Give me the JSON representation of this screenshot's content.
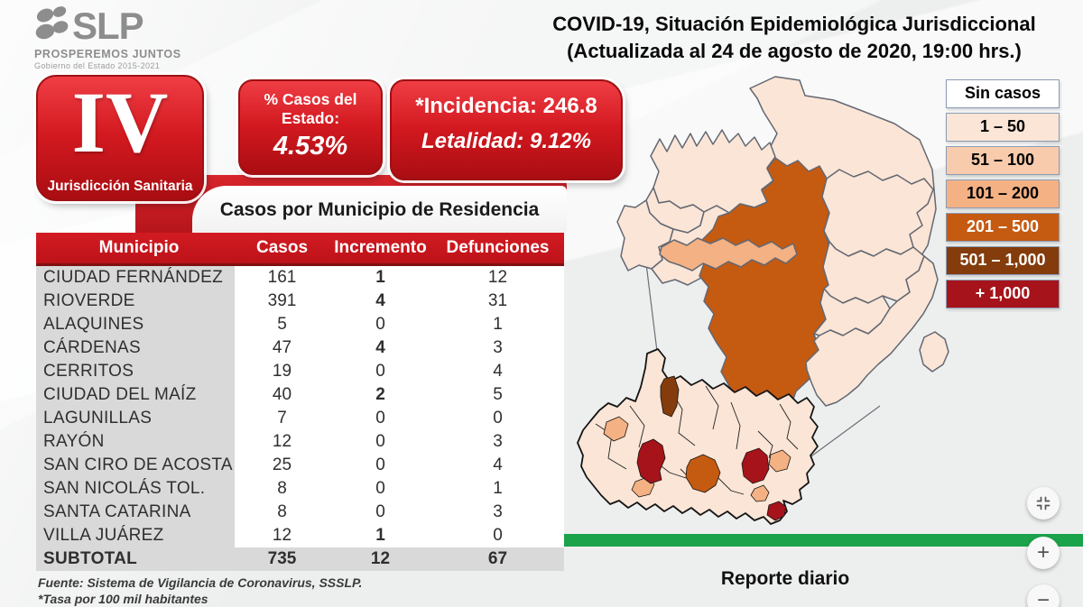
{
  "brand": {
    "name": "SLP",
    "tagline": "PROSPEREMOS JUNTOS",
    "government": "Gobierno del Estado 2015-2021"
  },
  "header": {
    "title_line1": "COVID-19, Situación Epidemiológica Jurisdiccional",
    "title_line2": "(Actualizada al 24 de agosto de 2020, 19:00 hrs.)"
  },
  "jurisdiction": {
    "numeral": "IV",
    "label": "Jurisdicción Sanitaria"
  },
  "stats": {
    "state_share": {
      "label": "% Casos del Estado:",
      "value": "4.53%"
    },
    "incidence": {
      "label": "*Incidencia:",
      "value": "246.8"
    },
    "lethality": {
      "label": "Letalidad:",
      "value": "9.12%"
    }
  },
  "table": {
    "title": "Casos por Municipio  de Residencia",
    "columns": [
      "Municipio",
      "Casos",
      "Incremento",
      "Defunciones"
    ],
    "rows": [
      {
        "municipio": "CIUDAD FERNÁNDEZ",
        "casos": "161",
        "incremento": "1",
        "defunciones": "12",
        "incremento_bold": true
      },
      {
        "municipio": "RIOVERDE",
        "casos": "391",
        "incremento": "4",
        "defunciones": "31",
        "incremento_bold": true
      },
      {
        "municipio": "ALAQUINES",
        "casos": "5",
        "incremento": "0",
        "defunciones": "1",
        "incremento_bold": false
      },
      {
        "municipio": "CÁRDENAS",
        "casos": "47",
        "incremento": "4",
        "defunciones": "3",
        "incremento_bold": true
      },
      {
        "municipio": "CERRITOS",
        "casos": "19",
        "incremento": "0",
        "defunciones": "4",
        "incremento_bold": false
      },
      {
        "municipio": "CIUDAD DEL MAÍZ",
        "casos": "40",
        "incremento": "2",
        "defunciones": "5",
        "incremento_bold": true
      },
      {
        "municipio": "LAGUNILLAS",
        "casos": "7",
        "incremento": "0",
        "defunciones": "0",
        "incremento_bold": false
      },
      {
        "municipio": "RAYÓN",
        "casos": "12",
        "incremento": "0",
        "defunciones": "3",
        "incremento_bold": false
      },
      {
        "municipio": "SAN CIRO DE ACOSTA",
        "casos": "25",
        "incremento": "0",
        "defunciones": "4",
        "incremento_bold": false
      },
      {
        "municipio": "SAN NICOLÁS TOL.",
        "casos": "8",
        "incremento": "0",
        "defunciones": "1",
        "incremento_bold": false
      },
      {
        "municipio": "SANTA CATARINA",
        "casos": "8",
        "incremento": "0",
        "defunciones": "3",
        "incremento_bold": false
      },
      {
        "municipio": "VILLA JUÁREZ",
        "casos": "12",
        "incremento": "1",
        "defunciones": "0",
        "incremento_bold": true
      }
    ],
    "subtotal": {
      "municipio": "SUBTOTAL",
      "casos": "735",
      "incremento": "12",
      "defunciones": "67"
    }
  },
  "footnotes": {
    "source": "Fuente: Sistema de Vigilancia de Coronavirus, SSSLP.",
    "rate": "*Tasa por 100 mil habitantes"
  },
  "legend": {
    "items": [
      {
        "label": "Sin casos",
        "fill": "#FFFFFF",
        "text_color": "#000000"
      },
      {
        "label": "1 – 50",
        "fill": "#FBE5D6",
        "text_color": "#000000"
      },
      {
        "label": "51 – 100",
        "fill": "#F8CBAD",
        "text_color": "#000000"
      },
      {
        "label": "101 – 200",
        "fill": "#F4B183",
        "text_color": "#000000"
      },
      {
        "label": "201 – 500",
        "fill": "#C55A11",
        "text_color": "#FFFFFF"
      },
      {
        "label": "501 – 1,000",
        "fill": "#843C0C",
        "text_color": "#FFFFFF"
      },
      {
        "label": "+ 1,000",
        "fill": "#A6131A",
        "text_color": "#FFFFFF"
      }
    ]
  },
  "map": {
    "fills": {
      "none": "#FFFFFF",
      "r1_50": "#FBE5D6",
      "r51_100": "#F8CBAD",
      "r101_200": "#F4B183",
      "r201_500": "#C55A11",
      "r501_1000": "#843C0C",
      "r1000_plus": "#A6131A"
    }
  },
  "footer": {
    "report_label": "Reporte diario",
    "bar_color": "#1AA34A"
  },
  "viewer_controls": {
    "zoom_in": "+",
    "zoom_out": "−"
  }
}
